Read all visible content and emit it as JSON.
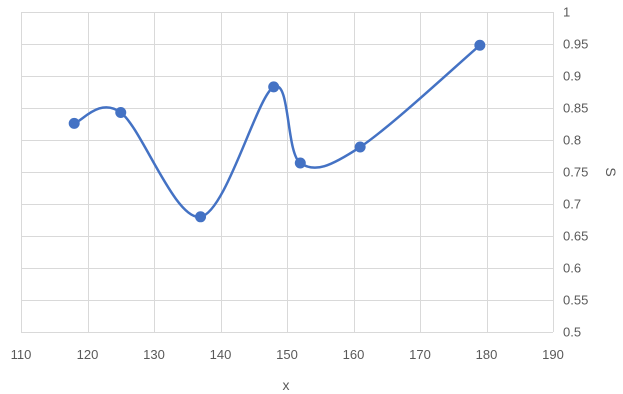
{
  "chart_data": {
    "type": "scatter",
    "title": "",
    "xlabel": "x",
    "ylabel": "S",
    "xlim": [
      110,
      190
    ],
    "ylim": [
      0.5,
      1
    ],
    "x_ticks": [
      110,
      120,
      130,
      140,
      150,
      160,
      170,
      180,
      190
    ],
    "x_tick_labels": [
      "110",
      "120",
      "130",
      "140",
      "150",
      "160",
      "170",
      "180",
      "190"
    ],
    "y_ticks": [
      0.5,
      0.55,
      0.6,
      0.65,
      0.7,
      0.75,
      0.8,
      0.85,
      0.9,
      0.95,
      1
    ],
    "y_tick_labels": [
      "0.5",
      "0.55",
      "0.6",
      "0.65",
      "0.7",
      "0.75",
      "0.8",
      "0.85",
      "0.9",
      "0.95",
      "1"
    ],
    "y_axis_position": "right",
    "grid": true,
    "smooth_line": true,
    "series": [
      {
        "x": [
          118,
          125,
          137,
          148,
          152,
          161,
          179
        ],
        "y": [
          0.826,
          0.843,
          0.68,
          0.883,
          0.764,
          0.789,
          0.948
        ],
        "color": "#4472c4",
        "marker": "circle"
      }
    ]
  }
}
